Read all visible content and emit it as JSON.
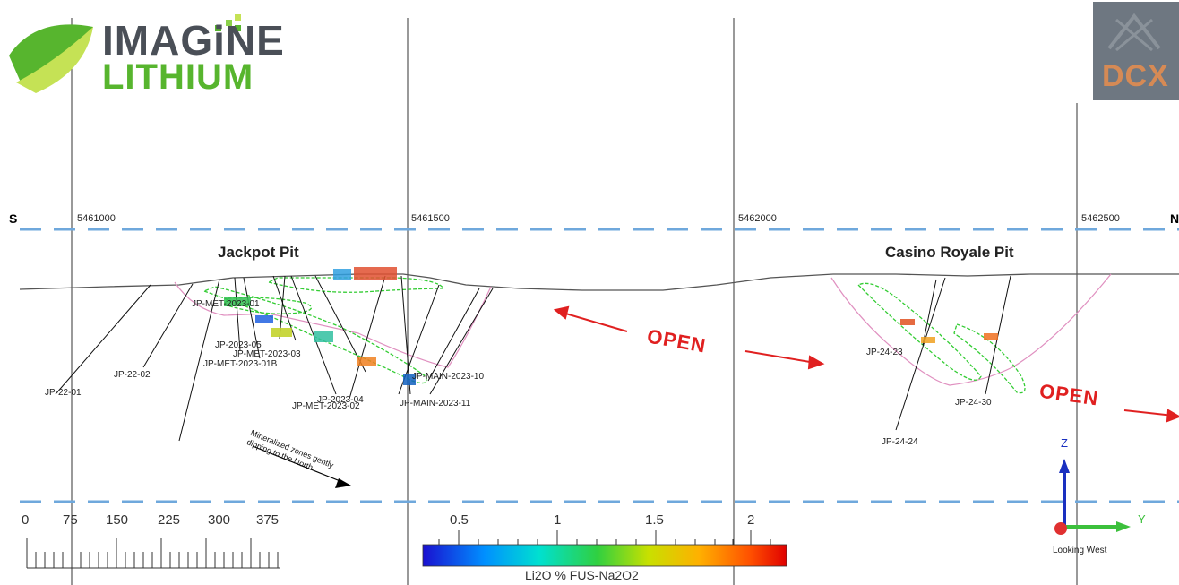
{
  "logo": {
    "line1": "IMAGiNE",
    "line2": "LITHIUM",
    "partner": "DCX",
    "leaf_colors": [
      "#57b52e",
      "#8bd14a",
      "#c5e255"
    ]
  },
  "section": {
    "left_label": "S",
    "right_label": "N",
    "northings": [
      "5461000",
      "5461500",
      "5462000",
      "5462500"
    ],
    "view": "Looking West"
  },
  "pits": [
    "Jackpot Pit",
    "Casino Royale Pit"
  ],
  "open_labels": [
    "OPEN",
    "OPEN"
  ],
  "annotation": "Mineralized zones gently\ndipping to the North",
  "drill_holes": [
    "JP-22-01",
    "JP-22-02",
    "JP-MET-2023-01",
    "JP-2023-05",
    "JP-MET-2023-03",
    "JP-MET-2023-01B",
    "JP-2023-04",
    "JP-MET-2023-02",
    "JP-MAIN-2023-10",
    "JP-MAIN-2023-11",
    "JP-24-23",
    "JP-24-30",
    "JP-24-24"
  ],
  "scale_bar": {
    "ticks": [
      "0",
      "75",
      "150",
      "225",
      "300",
      "375"
    ]
  },
  "color_bar": {
    "title": "Li2O % FUS-Na2O2",
    "ticks": [
      "0.5",
      "1",
      "1.5",
      "2"
    ],
    "gradient": [
      "#1a10d0",
      "#0090ff",
      "#00e0d0",
      "#30d040",
      "#c8e000",
      "#ffb000",
      "#ff5000",
      "#e00000"
    ]
  },
  "axes": {
    "z": "Z",
    "y": "Y"
  },
  "colors": {
    "open_text": "#e02020",
    "dashed_line": "#6fa8dc",
    "zone_outline": "#33cc33",
    "pit_shell": "#e090c0"
  }
}
